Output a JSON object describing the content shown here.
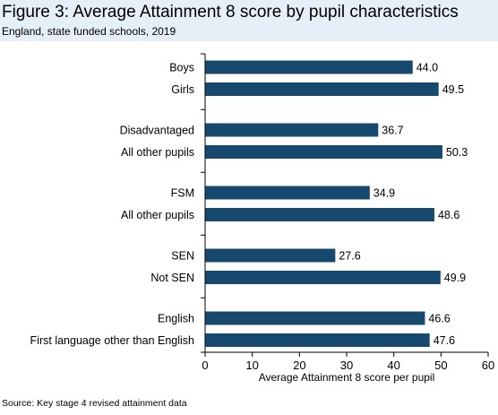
{
  "figure": {
    "title": "Figure 3: Average Attainment 8 score by pupil characteristics",
    "subtitle": "England, state funded schools, 2019",
    "source": "Source: Key stage 4 revised attainment data"
  },
  "colors": {
    "bar": "#17496e",
    "header_band": "#e6eef7",
    "axis": "#000000"
  },
  "chart_data": {
    "type": "bar",
    "orientation": "horizontal",
    "categories": [
      "Boys",
      "Girls",
      "Disadvantaged",
      "All other pupils",
      "FSM",
      "All other pupils",
      "SEN",
      "Not SEN",
      "English",
      "First language other than English"
    ],
    "values": [
      44.0,
      49.5,
      36.7,
      50.3,
      34.9,
      48.6,
      27.6,
      49.9,
      46.6,
      47.6
    ],
    "value_labels": [
      "44.0",
      "49.5",
      "36.7",
      "50.3",
      "34.9",
      "48.6",
      "27.6",
      "49.9",
      "46.6",
      "47.6"
    ],
    "groups": [
      [
        0,
        1
      ],
      [
        2,
        3
      ],
      [
        4,
        5
      ],
      [
        6,
        7
      ],
      [
        8,
        9
      ]
    ],
    "xlabel": "Average Attainment 8 score per pupil",
    "xlim": [
      0,
      60
    ],
    "xticks": [
      "0",
      "10",
      "20",
      "30",
      "40",
      "50",
      "60"
    ],
    "grid": false
  }
}
